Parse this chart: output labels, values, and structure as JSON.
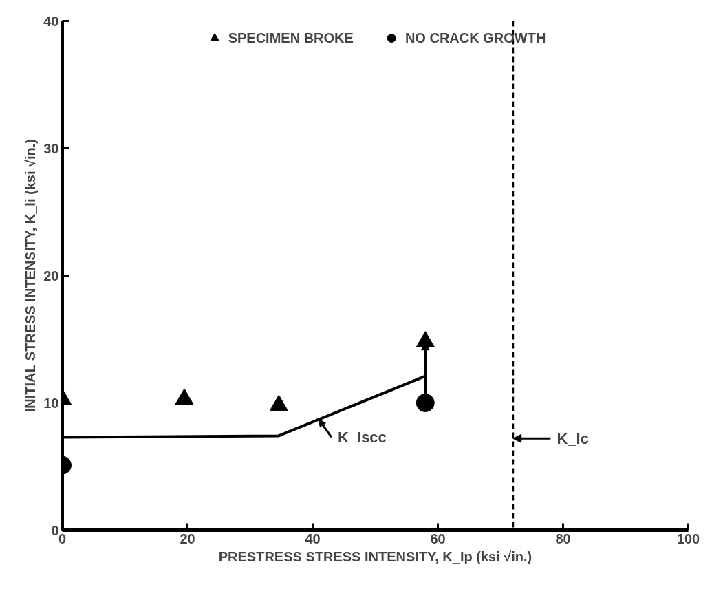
{
  "chart_data": {
    "type": "scatter",
    "xlabel": "PRESTRESS STRESS INTENSITY, K_Ip (ksi √in.)",
    "ylabel": "INITIAL STRESS INTENSITY, K_Ii (ksi √in.)",
    "xlim": [
      0,
      100
    ],
    "ylim": [
      0,
      40
    ],
    "xticks": [
      0,
      20,
      40,
      60,
      80,
      100
    ],
    "yticks": [
      0,
      10,
      20,
      30,
      40
    ],
    "grid": false,
    "legend": "top",
    "series": [
      {
        "name": "SPECIMEN BROKE",
        "marker": "triangle",
        "color": "#000000",
        "x": [
          0,
          19.5,
          34.6,
          58
        ],
        "values": [
          10.3,
          10.3,
          9.8,
          14.8
        ]
      },
      {
        "name": "NO CRACK GROWTH",
        "marker": "circle",
        "color": "#000000",
        "x": [
          0,
          58
        ],
        "values": [
          5.1,
          10.0
        ]
      },
      {
        "type": "line",
        "line_style": "solid",
        "marker": "none",
        "color": "#000000",
        "x": [
          0,
          34.5,
          58
        ],
        "values": [
          7.3,
          7.4,
          12.1
        ]
      }
    ],
    "ref_lines": [
      {
        "axis": "x",
        "value": 72,
        "label": "K_Ic",
        "line_style": "dashed",
        "color": "#000000"
      }
    ],
    "annotations": [
      {
        "text": "K_Iscc",
        "x": 41,
        "y": 8.7
      }
    ]
  }
}
